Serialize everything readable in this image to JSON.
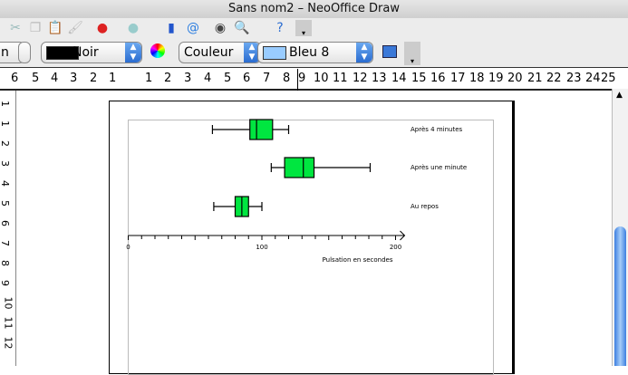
{
  "window": {
    "title": "Sans nom2 – NeoOffice Draw"
  },
  "toolbar1": {
    "icons": [
      "cut-icon",
      "copy-icon",
      "paste-icon",
      "format-paintbrush-icon",
      "undo-icon",
      "redo-icon",
      "chart-icon",
      "email-icon",
      "navigator-icon",
      "zoom-icon",
      "help-icon"
    ]
  },
  "toolbar2": {
    "partial_field": "n",
    "line_color": "Noir",
    "line_color_swatch": "#000000",
    "area_style": "Couleur",
    "area_color": "Bleu 8",
    "area_color_swatch": "#99ccff"
  },
  "ruler": {
    "h_labels": [
      "6",
      "5",
      "4",
      "3",
      "2",
      "1",
      "1",
      "2",
      "3",
      "4",
      "5",
      "6",
      "7",
      "8",
      "9",
      "10",
      "11",
      "12",
      "13",
      "14",
      "15",
      "16",
      "17",
      "18",
      "19",
      "20",
      "21",
      "22",
      "23",
      "24",
      "25"
    ],
    "v_labels": [
      "1",
      "1",
      "2",
      "3",
      "4",
      "5",
      "6",
      "7",
      "8",
      "9",
      "10",
      "11",
      "12"
    ]
  },
  "chart_data": {
    "type": "boxplot",
    "orientation": "horizontal",
    "categories": [
      "Après 4 minutes",
      "Après une minute",
      "Au repos"
    ],
    "series": [
      {
        "category": "Après 4 minutes",
        "min": 63,
        "q1": 91,
        "median": 96,
        "q3": 108,
        "max": 120
      },
      {
        "category": "Après une minute",
        "min": 107,
        "q1": 117,
        "median": 131,
        "q3": 139,
        "max": 181
      },
      {
        "category": "Au repos",
        "min": 64,
        "q1": 80,
        "median": 85,
        "q3": 90,
        "max": 100
      }
    ],
    "xlabel": "Pulsation en secondes",
    "xlim": [
      0,
      200
    ],
    "xticks": [
      "0",
      "100",
      "200"
    ],
    "box_color": "#00e640"
  }
}
